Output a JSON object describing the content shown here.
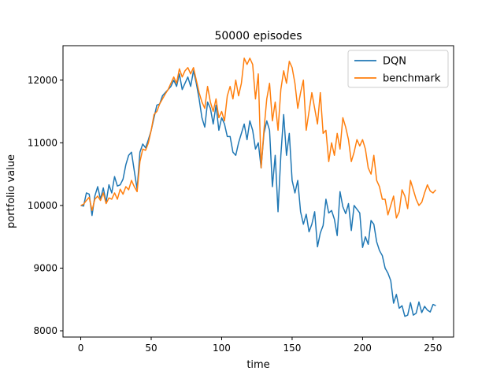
{
  "chart_data": {
    "type": "line",
    "title": "50000 episodes",
    "xlabel": "time",
    "ylabel": "portfolio value",
    "xlim": [
      -12.6,
      264.6
    ],
    "ylim": [
      7900,
      12550
    ],
    "xticks": [
      0,
      50,
      100,
      150,
      200,
      250
    ],
    "yticks": [
      8000,
      9000,
      10000,
      11000,
      12000
    ],
    "grid": false,
    "legend": "top-right",
    "series": [
      {
        "name": "DQN",
        "color": "#1f77b4",
        "x": [
          0,
          2,
          4,
          6,
          8,
          10,
          12,
          14,
          16,
          18,
          20,
          22,
          24,
          26,
          28,
          30,
          32,
          34,
          36,
          38,
          40,
          42,
          44,
          46,
          48,
          50,
          52,
          54,
          56,
          58,
          60,
          62,
          64,
          66,
          68,
          70,
          72,
          74,
          76,
          78,
          80,
          82,
          84,
          86,
          88,
          90,
          92,
          94,
          96,
          98,
          100,
          102,
          104,
          106,
          108,
          110,
          112,
          114,
          116,
          118,
          120,
          122,
          124,
          126,
          128,
          130,
          132,
          134,
          136,
          138,
          140,
          142,
          144,
          146,
          148,
          150,
          152,
          154,
          156,
          158,
          160,
          162,
          164,
          166,
          168,
          170,
          172,
          174,
          176,
          178,
          180,
          182,
          184,
          186,
          188,
          190,
          192,
          194,
          196,
          198,
          200,
          202,
          204,
          206,
          208,
          210,
          212,
          214,
          216,
          218,
          220,
          222,
          224,
          226,
          228,
          230,
          232,
          234,
          236,
          238,
          240,
          242,
          244,
          246,
          248,
          250,
          252
        ],
        "y": [
          10000,
          9990,
          10200,
          10180,
          9840,
          10150,
          10300,
          10100,
          10280,
          10050,
          10330,
          10200,
          10460,
          10310,
          10330,
          10420,
          10650,
          10800,
          10850,
          10550,
          10260,
          10850,
          10980,
          10920,
          11050,
          11200,
          11400,
          11600,
          11620,
          11750,
          11800,
          11850,
          11900,
          12000,
          11900,
          12100,
          11850,
          11950,
          12050,
          11900,
          12150,
          11950,
          11700,
          11400,
          11250,
          11650,
          11550,
          11300,
          11600,
          11200,
          11400,
          11300,
          11100,
          11100,
          10850,
          10800,
          11000,
          11150,
          11300,
          11050,
          11350,
          11200,
          10900,
          11000,
          10600,
          11150,
          11350,
          11200,
          10300,
          10800,
          9900,
          10800,
          11450,
          10800,
          11150,
          10400,
          10200,
          10400,
          9900,
          9700,
          9860,
          9580,
          9700,
          9900,
          9340,
          9560,
          9680,
          10100,
          9880,
          9920,
          9780,
          9520,
          10220,
          9980,
          9870,
          10030,
          9600,
          10000,
          9940,
          9880,
          9330,
          9500,
          9380,
          9760,
          9700,
          9420,
          9280,
          9200,
          9000,
          8920,
          8800,
          8440,
          8580,
          8360,
          8400,
          8230,
          8250,
          8450,
          8250,
          8280,
          8460,
          8290,
          8390,
          8330,
          8300,
          8420,
          8400
        ]
      },
      {
        "name": "benchmark",
        "color": "#ff7f0e",
        "x": [
          0,
          2,
          4,
          6,
          8,
          10,
          12,
          14,
          16,
          18,
          20,
          22,
          24,
          26,
          28,
          30,
          32,
          34,
          36,
          38,
          40,
          42,
          44,
          46,
          48,
          50,
          52,
          54,
          56,
          58,
          60,
          62,
          64,
          66,
          68,
          70,
          72,
          74,
          76,
          78,
          80,
          82,
          84,
          86,
          88,
          90,
          92,
          94,
          96,
          98,
          100,
          102,
          104,
          106,
          108,
          110,
          112,
          114,
          116,
          118,
          120,
          122,
          124,
          126,
          128,
          130,
          132,
          134,
          136,
          138,
          140,
          142,
          144,
          146,
          148,
          150,
          152,
          154,
          156,
          158,
          160,
          162,
          164,
          166,
          168,
          170,
          172,
          174,
          176,
          178,
          180,
          182,
          184,
          186,
          188,
          190,
          192,
          194,
          196,
          198,
          200,
          202,
          204,
          206,
          208,
          210,
          212,
          214,
          216,
          218,
          220,
          222,
          224,
          226,
          228,
          230,
          232,
          234,
          236,
          238,
          240,
          242,
          244,
          246,
          248,
          250,
          252
        ],
        "y": [
          10000,
          10020,
          10080,
          10130,
          9920,
          10100,
          10150,
          10080,
          10200,
          10030,
          10120,
          10100,
          10200,
          10100,
          10260,
          10180,
          10300,
          10250,
          10400,
          10300,
          10220,
          10700,
          10900,
          10880,
          11000,
          11200,
          11450,
          11500,
          11620,
          11700,
          11780,
          11850,
          11950,
          12050,
          11950,
          12180,
          12050,
          12150,
          12200,
          12100,
          12200,
          12000,
          11800,
          11650,
          11550,
          11900,
          11650,
          11500,
          11700,
          11400,
          11500,
          11350,
          11750,
          11900,
          11700,
          12000,
          11750,
          11950,
          12350,
          12250,
          12350,
          12250,
          11700,
          12100,
          10600,
          11200,
          11700,
          11950,
          11350,
          11650,
          11200,
          11850,
          12150,
          11950,
          12300,
          12200,
          11950,
          11550,
          11800,
          12000,
          11200,
          11500,
          11800,
          11550,
          11300,
          11800,
          11150,
          11200,
          10700,
          11000,
          10800,
          11150,
          10900,
          11400,
          11250,
          11050,
          10700,
          10850,
          11050,
          10950,
          11050,
          10900,
          10600,
          10500,
          10800,
          10400,
          10300,
          10100,
          10100,
          9850,
          10000,
          10150,
          9800,
          9900,
          10250,
          10150,
          9950,
          10400,
          10250,
          10100,
          10000,
          10050,
          10200,
          10330,
          10230,
          10200,
          10250
        ]
      }
    ]
  }
}
